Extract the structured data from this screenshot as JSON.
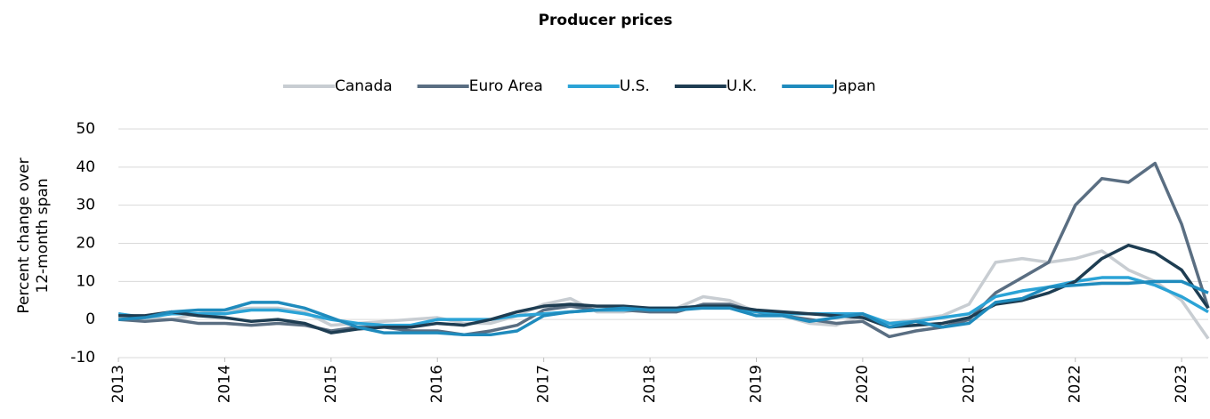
{
  "chart_data": {
    "type": "line",
    "title": "Producer prices",
    "y_label": [
      "Percent change over",
      "12-month span"
    ],
    "x": [
      2013,
      2013.25,
      2013.5,
      2013.75,
      2014,
      2014.25,
      2014.5,
      2014.75,
      2015,
      2015.25,
      2015.5,
      2015.75,
      2016,
      2016.25,
      2016.5,
      2016.75,
      2017,
      2017.25,
      2017.5,
      2017.75,
      2018,
      2018.25,
      2018.5,
      2018.75,
      2019,
      2019.25,
      2019.5,
      2019.75,
      2020,
      2020.25,
      2020.5,
      2020.75,
      2021,
      2021.25,
      2021.5,
      2021.75,
      2022,
      2022.25,
      2022.5,
      2022.75,
      2023,
      2023.25
    ],
    "xlim": [
      2013,
      2023.25
    ],
    "xticks": [
      2013,
      2014,
      2015,
      2016,
      2017,
      2018,
      2019,
      2020,
      2021,
      2022,
      2023
    ],
    "ylim": [
      -10,
      50
    ],
    "yticks": [
      -10,
      0,
      10,
      20,
      30,
      40,
      50
    ],
    "grid": true,
    "legend": "top",
    "series": [
      {
        "name": "Canada",
        "color": "#c8cdd2",
        "values": [
          1.5,
          0.5,
          0,
          1.5,
          2.5,
          3,
          3,
          2,
          -1.5,
          -1,
          -0.5,
          0,
          0.5,
          -1,
          -1,
          1,
          4,
          5.5,
          2,
          2,
          3,
          3,
          6,
          5,
          2,
          1,
          -1,
          -1.5,
          1,
          -1,
          0,
          1,
          4,
          15,
          16,
          15,
          16,
          18,
          13,
          10,
          5,
          -5
        ]
      },
      {
        "name": "Euro Area",
        "color": "#5a6e82",
        "values": [
          0,
          -0.5,
          0,
          -1,
          -1,
          -1.5,
          -1,
          -1.5,
          -3,
          -2,
          -2,
          -3,
          -3,
          -4,
          -3,
          -1.5,
          2.5,
          3.5,
          2.5,
          2.5,
          2,
          2,
          4,
          4,
          2,
          1,
          0,
          -1,
          -0.5,
          -4.5,
          -3,
          -2,
          0,
          7,
          11,
          15,
          30,
          37,
          36,
          41,
          25,
          3
        ]
      },
      {
        "name": "U.S.",
        "color": "#2ba3d6",
        "values": [
          1.5,
          0.5,
          1.5,
          1.5,
          1.5,
          2.5,
          2.5,
          1.5,
          0,
          -1,
          -1.5,
          -1.5,
          0,
          0,
          0,
          1,
          1.5,
          2,
          2.5,
          2.5,
          3,
          3,
          3.5,
          3,
          2,
          1.5,
          1.5,
          1.5,
          1.5,
          -1,
          -0.5,
          0.5,
          1.5,
          6,
          7.5,
          8.5,
          10,
          11,
          11,
          9,
          6,
          2
        ]
      },
      {
        "name": "U.K.",
        "color": "#1e3d52",
        "values": [
          1,
          1,
          2,
          1,
          0.5,
          -0.5,
          0,
          -1,
          -3.5,
          -2.5,
          -2,
          -2,
          -1,
          -1.5,
          0,
          2,
          3.5,
          4,
          3.5,
          3.5,
          3,
          3,
          3.5,
          3.5,
          2.5,
          2,
          1.5,
          1,
          0.5,
          -2,
          -1.5,
          -1,
          0.5,
          4,
          5,
          7,
          10,
          16,
          19.5,
          17.5,
          13,
          3
        ]
      },
      {
        "name": "Japan",
        "color": "#1f8bbd",
        "values": [
          0,
          0.5,
          2,
          2.5,
          2.5,
          4.5,
          4.5,
          3,
          0.5,
          -2,
          -3.5,
          -3.5,
          -3.5,
          -4,
          -4,
          -3,
          1,
          2,
          2.5,
          3,
          2.5,
          2.5,
          3,
          3,
          1,
          1,
          -0.5,
          0.5,
          1.5,
          -2,
          -0.5,
          -2,
          -1,
          4.5,
          5.5,
          8.5,
          9,
          9.5,
          9.5,
          10,
          10,
          7
        ]
      }
    ]
  }
}
